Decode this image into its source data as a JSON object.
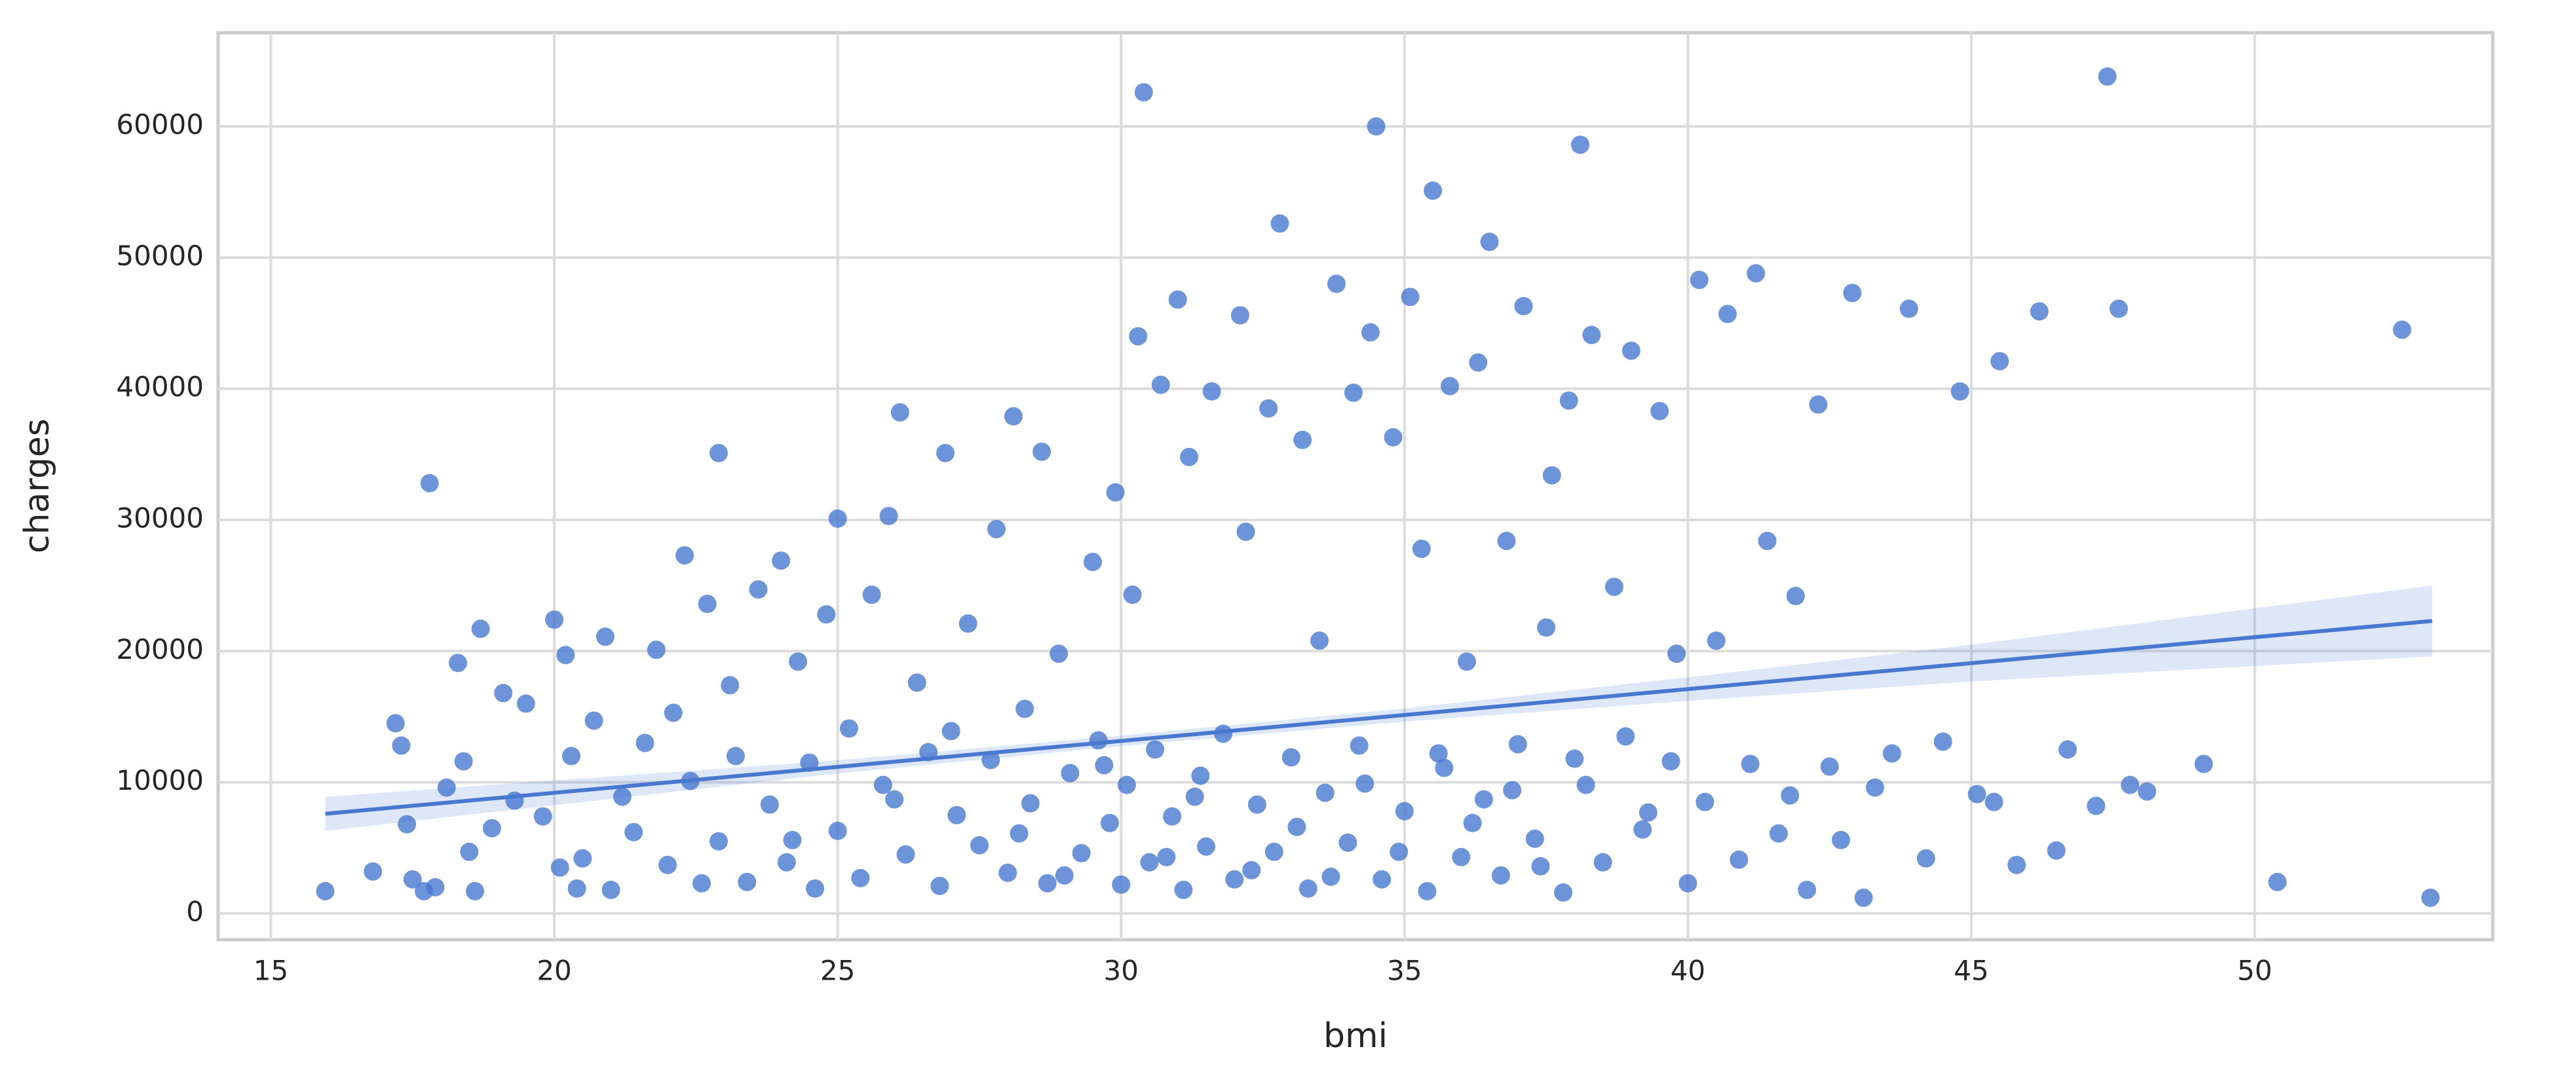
{
  "chart_data": {
    "type": "scatter",
    "xlabel": "bmi",
    "ylabel": "charges",
    "color": "#4878d0",
    "grid": true,
    "xlim": [
      14.07,
      54.2
    ],
    "ylim": [
      -2000,
      67140
    ],
    "xticks": [
      15,
      20,
      25,
      30,
      35,
      40,
      45,
      50
    ],
    "yticks": [
      0,
      10000,
      20000,
      30000,
      40000,
      50000,
      60000
    ],
    "x": [
      16.8,
      17.2,
      17.3,
      17.4,
      17.5,
      17.7,
      17.9,
      18.1,
      18.3,
      18.4,
      18.5,
      18.6,
      18.7,
      18.9,
      19.1,
      19.3,
      19.5,
      19.8,
      20.0,
      20.1,
      20.2,
      20.3,
      20.4,
      20.5,
      20.7,
      20.9,
      21.0,
      21.2,
      21.4,
      21.6,
      21.8,
      22.0,
      22.1,
      22.3,
      22.4,
      22.6,
      22.7,
      22.9,
      23.1,
      23.2,
      23.4,
      23.6,
      23.8,
      24.0,
      24.1,
      24.3,
      24.5,
      24.6,
      24.8,
      25.0,
      25.0,
      25.2,
      25.4,
      25.6,
      25.8,
      25.9,
      26.1,
      26.2,
      26.4,
      26.6,
      26.8,
      26.9,
      27.1,
      27.3,
      27.5,
      27.7,
      27.8,
      28.0,
      28.1,
      28.3,
      28.4,
      28.6,
      28.7,
      28.9,
      29.1,
      29.3,
      29.5,
      29.6,
      29.8,
      29.9,
      30.0,
      30.1,
      30.2,
      30.3,
      30.4,
      30.5,
      30.6,
      30.7,
      30.9,
      31.0,
      31.1,
      31.2,
      31.4,
      31.5,
      31.6,
      31.8,
      32.0,
      32.1,
      32.2,
      32.4,
      32.6,
      32.7,
      32.8,
      33.0,
      33.2,
      33.3,
      33.5,
      33.6,
      33.8,
      34.0,
      34.1,
      34.2,
      34.4,
      34.5,
      34.6,
      34.8,
      35.0,
      35.1,
      35.3,
      35.4,
      35.5,
      35.7,
      35.8,
      36.0,
      36.1,
      36.3,
      36.4,
      36.5,
      36.7,
      36.8,
      37.0,
      37.1,
      37.3,
      37.5,
      37.6,
      37.8,
      37.9,
      38.1,
      38.2,
      38.3,
      38.5,
      38.7,
      38.9,
      39.0,
      39.2,
      39.5,
      39.7,
      39.8,
      40.0,
      40.2,
      40.3,
      40.5,
      40.7,
      40.9,
      41.1,
      41.2,
      41.4,
      41.6,
      41.8,
      41.9,
      42.1,
      42.3,
      42.5,
      42.7,
      42.9,
      43.1,
      43.3,
      43.6,
      43.9,
      44.2,
      44.5,
      44.8,
      45.1,
      45.4,
      45.5,
      45.8,
      46.2,
      46.5,
      46.7,
      47.2,
      47.4,
      47.6,
      47.8,
      48.1,
      49.1,
      50.4,
      52.6,
      53.1,
      15.96,
      17.8,
      22.9,
      24.2,
      26.0,
      27.0,
      28.2,
      29.0,
      29.7,
      30.8,
      31.3,
      32.3,
      33.1,
      33.7,
      34.3,
      34.9,
      35.6,
      36.2,
      36.9,
      37.4,
      38.0,
      39.3
    ],
    "values": [
      3200,
      14500,
      12800,
      6800,
      2600,
      1700,
      2000,
      9600,
      19100,
      11600,
      4700,
      1700,
      21700,
      6500,
      16800,
      8600,
      16000,
      7400,
      22400,
      3500,
      19700,
      12000,
      1900,
      4200,
      14700,
      21100,
      1800,
      8900,
      6200,
      13000,
      20100,
      3700,
      15300,
      27300,
      10100,
      2300,
      23600,
      5500,
      17400,
      12000,
      2400,
      24700,
      8300,
      26900,
      3900,
      19200,
      11500,
      1900,
      22800,
      30100,
      6300,
      14100,
      2700,
      24300,
      9800,
      30300,
      38200,
      4500,
      17600,
      12300,
      2100,
      35100,
      7500,
      22100,
      5200,
      11700,
      29300,
      3100,
      37900,
      15600,
      8400,
      35200,
      2300,
      19800,
      10700,
      4600,
      26800,
      13200,
      6900,
      32100,
      2200,
      9800,
      24300,
      44000,
      62600,
      3900,
      12500,
      40300,
      7400,
      46800,
      1800,
      34800,
      10500,
      5100,
      39800,
      13700,
      2600,
      45600,
      29100,
      8300,
      38500,
      4700,
      52600,
      11900,
      36100,
      1900,
      20800,
      9200,
      48000,
      5400,
      39700,
      12800,
      44300,
      60000,
      2600,
      36300,
      7800,
      47000,
      27800,
      1700,
      55100,
      11100,
      40200,
      4300,
      19200,
      42000,
      8700,
      51200,
      2900,
      28400,
      12900,
      46300,
      5700,
      21800,
      33400,
      1600,
      39100,
      58600,
      9800,
      44100,
      3900,
      24900,
      13500,
      42900,
      6400,
      38300,
      11600,
      19800,
      2300,
      48300,
      8500,
      20800,
      45700,
      4100,
      11400,
      48800,
      28400,
      6100,
      9000,
      24200,
      1800,
      38800,
      11200,
      5600,
      47300,
      1200,
      9600,
      12200,
      46100,
      4200,
      13100,
      39800,
      9100,
      8500,
      42100,
      3700,
      45900,
      4800,
      12500,
      8200,
      63800,
      46100,
      9800,
      9300,
      11400,
      2400,
      44500,
      1200,
      1700,
      32800,
      35100,
      5600,
      8700,
      13900,
      6100,
      2900,
      11300,
      4300,
      8900,
      3300,
      6600,
      2800,
      9900,
      4700,
      12200,
      6900,
      9400,
      3600,
      11800,
      7700
    ],
    "regression": {
      "x": [
        15.96,
        53.13
      ],
      "values": [
        7600,
        22300
      ]
    },
    "ci": {
      "x": [
        15.96,
        25,
        30,
        35,
        40,
        45,
        53.13
      ],
      "lower": [
        6300,
        10675,
        12753,
        14630,
        16208,
        17685,
        19600
      ],
      "upper": [
        8900,
        11675,
        13553,
        15630,
        18008,
        20485,
        25000
      ]
    }
  }
}
